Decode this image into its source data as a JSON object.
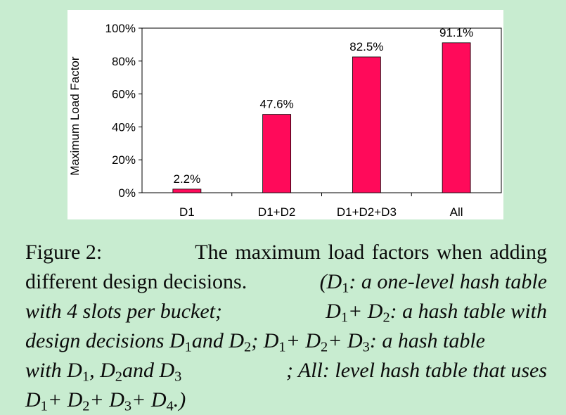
{
  "chart_data": {
    "type": "bar",
    "categories": [
      "D1",
      "D1+D2",
      "D1+D2+D3",
      "All"
    ],
    "values": [
      2.2,
      47.6,
      82.5,
      91.1
    ],
    "value_labels": [
      "2.2%",
      "47.6%",
      "82.5%",
      "91.1%"
    ],
    "ylabel": "Maximum Load Factor",
    "ylim": [
      0,
      100
    ],
    "yticks": [
      0,
      20,
      40,
      60,
      80,
      100
    ],
    "ytick_labels": [
      "0%",
      "20%",
      "40%",
      "60%",
      "80%",
      "100%"
    ],
    "grid": false,
    "bar_color": "#ff0a5a"
  },
  "caption": {
    "label": "Figure 2:",
    "text_line1": "The maximum load factors when adding",
    "text_line2": "different design decisions.",
    "paren_1": "(D",
    "d1_desc": ": a one-level hash table",
    "l3_text": "with 4 slots per bucket;",
    "l3_plus": " + D",
    "l3_desc": ": a hash table with",
    "l4_a": "design decisions D",
    "l4_and": " and D",
    "l4_semicolon": "; D",
    "l4_plus": " + D",
    "l4_plus2": " + D",
    "l4_desc": ": a hash table",
    "l5_with": "with D",
    "l5_comma": ", D",
    "l5_and": " and D",
    "l5_desc": "; All: level hash table that uses",
    "l6_d": "D",
    "l6_plus": " + D",
    "l6_end": ".)",
    "sub1": "1",
    "sub2": "2",
    "sub3": "3",
    "sub4": "4"
  }
}
